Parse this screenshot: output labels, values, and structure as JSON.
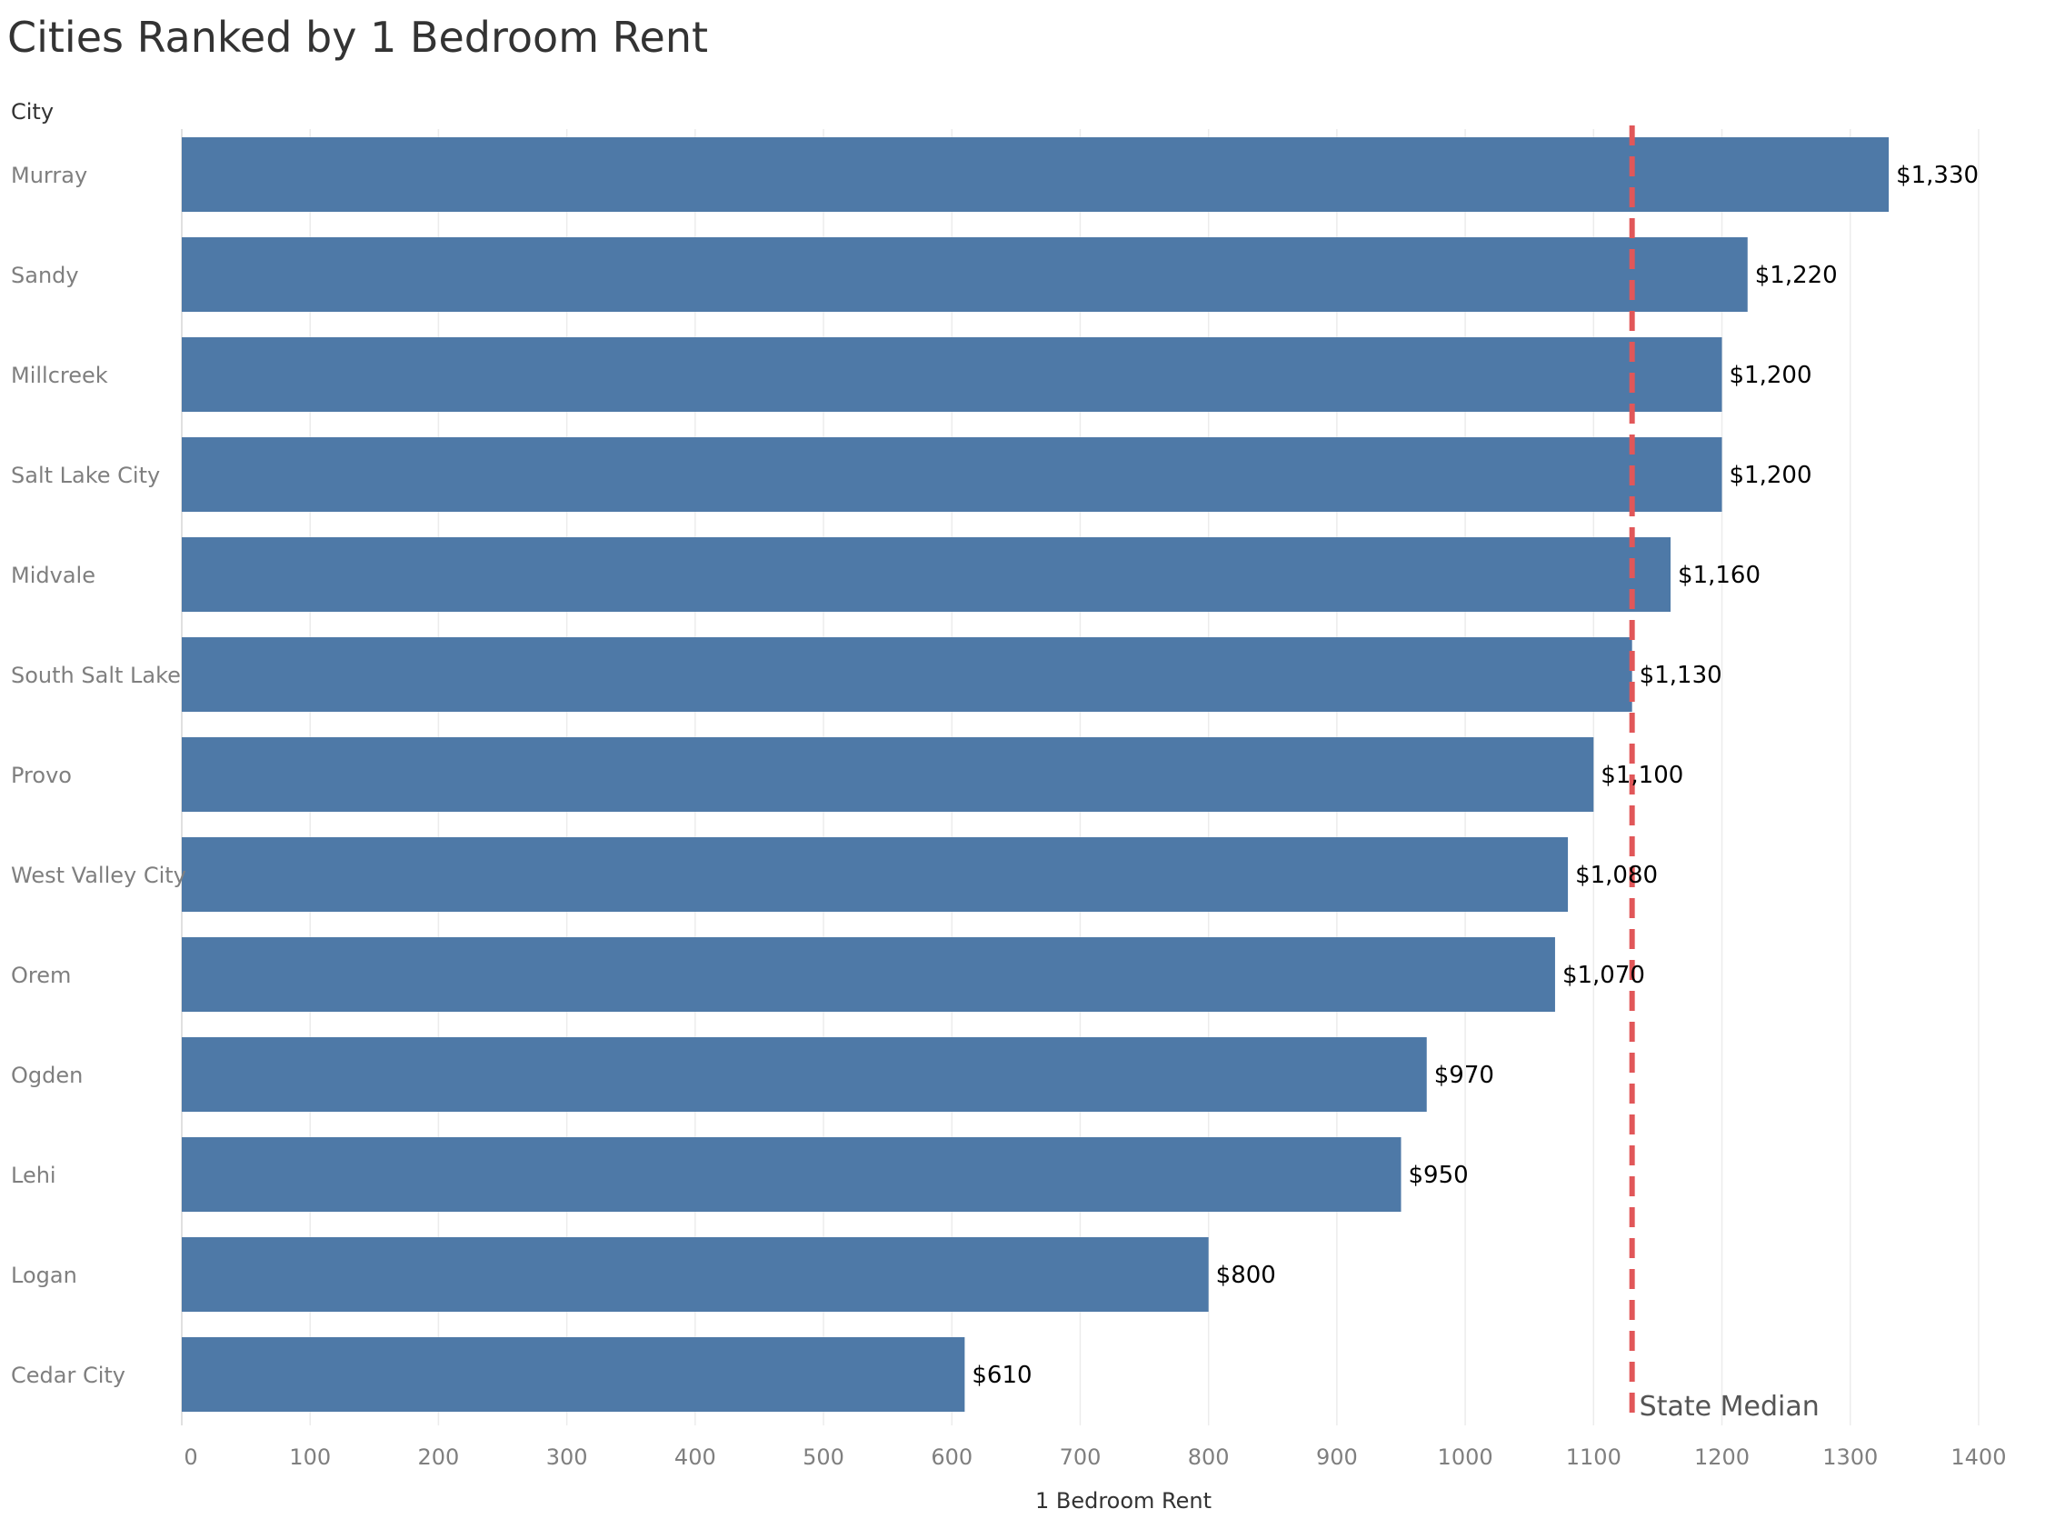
{
  "chart_data": {
    "type": "bar",
    "orientation": "horizontal",
    "title": "Cities Ranked by 1 Bedroom Rent",
    "ylabel": "City",
    "xlabel": "1 Bedroom Rent",
    "categories": [
      "Murray",
      "Sandy",
      "Millcreek",
      "Salt Lake City",
      "Midvale",
      "South Salt Lake",
      "Provo",
      "West Valley City",
      "Orem",
      "Ogden",
      "Lehi",
      "Logan",
      "Cedar City"
    ],
    "values": [
      1330,
      1220,
      1200,
      1200,
      1160,
      1130,
      1100,
      1080,
      1070,
      970,
      950,
      800,
      610
    ],
    "data_labels": [
      "$1,330",
      "$1,220",
      "$1,200",
      "$1,200",
      "$1,160",
      "$1,130",
      "$1,100",
      "$1,080",
      "$1,070",
      "$970",
      "$950",
      "$800",
      "$610"
    ],
    "xlim": [
      0,
      1400
    ],
    "x_ticks": [
      0,
      100,
      200,
      300,
      400,
      500,
      600,
      700,
      800,
      900,
      1000,
      1100,
      1200,
      1300,
      1400
    ],
    "grid": true,
    "reference_line": {
      "label": "State Median",
      "value": 1130,
      "style": "dashed"
    },
    "colors": {
      "bar": "#4e79a7",
      "reference_line": "#e15759",
      "grid": "#ececec",
      "axis_text": "#7f7f7f",
      "label_text": "#000000",
      "title_text": "#333333"
    }
  }
}
